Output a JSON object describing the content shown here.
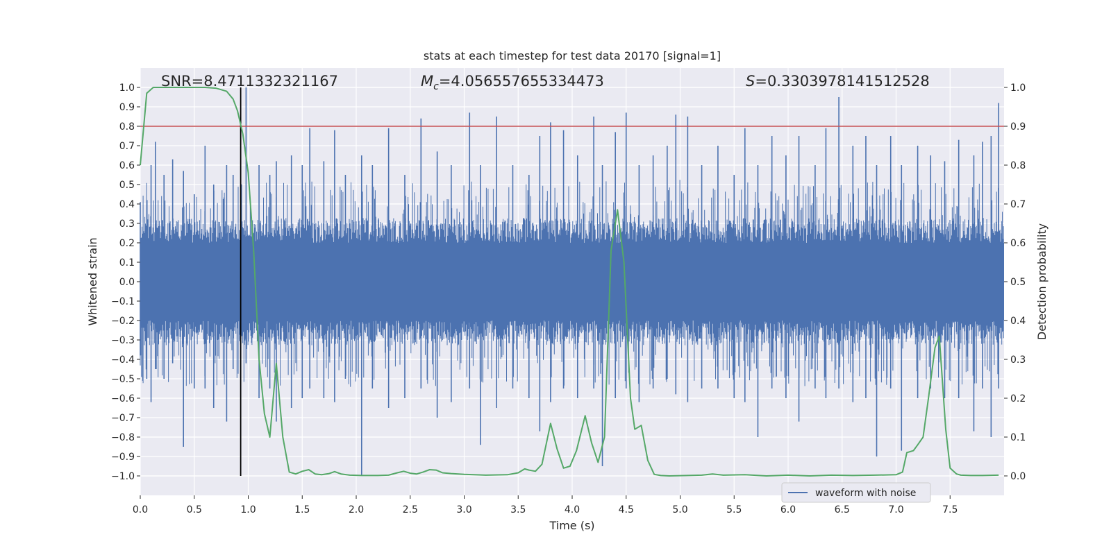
{
  "chart_data": {
    "type": "line",
    "title": "stats at each timestep for test data 20170 [signal=1]",
    "xlabel": "Time (s)",
    "ylabel": "Whitened strain",
    "y2label": "Detection probability",
    "xlim": [
      0.0,
      8.0
    ],
    "ylim": [
      -1.1,
      1.1
    ],
    "y2lim": [
      -0.05,
      1.05
    ],
    "xticks": [
      "0.0",
      "0.5",
      "1.0",
      "1.5",
      "2.0",
      "2.5",
      "3.0",
      "3.5",
      "4.0",
      "4.5",
      "5.0",
      "5.5",
      "6.0",
      "6.5",
      "7.0",
      "7.5"
    ],
    "yticks": [
      "1.0",
      "0.9",
      "0.8",
      "0.7",
      "0.6",
      "0.5",
      "0.4",
      "0.3",
      "0.2",
      "0.1",
      "0.0",
      "−0.1",
      "−0.2",
      "−0.3",
      "−0.4",
      "−0.5",
      "−0.6",
      "−0.7",
      "−0.8",
      "−0.9",
      "−1.0"
    ],
    "y2ticks": [
      "1.0",
      "0.9",
      "0.8",
      "0.7",
      "0.6",
      "0.5",
      "0.4",
      "0.3",
      "0.2",
      "0.1",
      "0.0"
    ],
    "annotations": {
      "snr": "SNR=8.4711332321167",
      "mc_symbol": "M",
      "mc_sub": "c",
      "mc_value": "=4.056557655334473",
      "s_symbol": "S",
      "s_value": "=0.3303978141512528"
    },
    "threshold": {
      "value": 0.8,
      "color": "#c44e52"
    },
    "vline": {
      "x": 0.93,
      "ymin": -1.0,
      "ymax": 1.0,
      "color": "#000000"
    },
    "legend": {
      "label": "waveform with noise",
      "position": "lower-right"
    },
    "colors": {
      "waveform": "#4c72b0",
      "probability": "#55a868",
      "background": "#eaeaf2",
      "grid": "#ffffff"
    },
    "waveform_peaks": [
      {
        "x": 0.0,
        "hi": 0.41,
        "lo": -0.38
      },
      {
        "x": 0.06,
        "hi": 0.28,
        "lo": -0.5
      },
      {
        "x": 0.1,
        "hi": 0.6,
        "lo": -0.62
      },
      {
        "x": 0.14,
        "hi": 0.72,
        "lo": -0.45
      },
      {
        "x": 0.22,
        "hi": 0.55,
        "lo": -0.5
      },
      {
        "x": 0.3,
        "hi": 0.63,
        "lo": -0.42
      },
      {
        "x": 0.4,
        "hi": 0.57,
        "lo": -0.85
      },
      {
        "x": 0.5,
        "hi": 0.45,
        "lo": -0.55
      },
      {
        "x": 0.6,
        "hi": 0.7,
        "lo": -0.55
      },
      {
        "x": 0.68,
        "hi": 0.5,
        "lo": -0.65
      },
      {
        "x": 0.8,
        "hi": 0.6,
        "lo": -0.72
      },
      {
        "x": 0.86,
        "hi": 0.55,
        "lo": -0.45
      },
      {
        "x": 0.98,
        "hi": 1.0,
        "lo": -0.42
      },
      {
        "x": 1.1,
        "hi": 0.6,
        "lo": -0.6
      },
      {
        "x": 1.2,
        "hi": 0.55,
        "lo": -0.55
      },
      {
        "x": 1.26,
        "hi": 0.62,
        "lo": -0.72
      },
      {
        "x": 1.4,
        "hi": 0.65,
        "lo": -0.65
      },
      {
        "x": 1.5,
        "hi": 0.6,
        "lo": -0.6
      },
      {
        "x": 1.57,
        "hi": 0.79,
        "lo": -0.55
      },
      {
        "x": 1.7,
        "hi": 0.62,
        "lo": -0.6
      },
      {
        "x": 1.8,
        "hi": 0.78,
        "lo": -0.62
      },
      {
        "x": 1.9,
        "hi": 0.55,
        "lo": -0.5
      },
      {
        "x": 2.05,
        "hi": 0.65,
        "lo": -1.0
      },
      {
        "x": 2.15,
        "hi": 0.6,
        "lo": -0.55
      },
      {
        "x": 2.3,
        "hi": 0.79,
        "lo": -0.65
      },
      {
        "x": 2.45,
        "hi": 0.55,
        "lo": -0.6
      },
      {
        "x": 2.6,
        "hi": 0.84,
        "lo": -0.55
      },
      {
        "x": 2.75,
        "hi": 0.67,
        "lo": -0.7
      },
      {
        "x": 2.88,
        "hi": 0.6,
        "lo": -0.62
      },
      {
        "x": 3.05,
        "hi": 0.87,
        "lo": -0.55
      },
      {
        "x": 3.15,
        "hi": 0.6,
        "lo": -0.84
      },
      {
        "x": 3.3,
        "hi": 0.85,
        "lo": -0.65
      },
      {
        "x": 3.45,
        "hi": 0.6,
        "lo": -0.55
      },
      {
        "x": 3.6,
        "hi": 0.55,
        "lo": -0.6
      },
      {
        "x": 3.7,
        "hi": 0.75,
        "lo": -0.77
      },
      {
        "x": 3.8,
        "hi": 0.82,
        "lo": -0.62
      },
      {
        "x": 3.92,
        "hi": 0.78,
        "lo": -0.55
      },
      {
        "x": 4.05,
        "hi": 0.65,
        "lo": -0.6
      },
      {
        "x": 4.2,
        "hi": 0.85,
        "lo": -0.55
      },
      {
        "x": 4.28,
        "hi": 0.6,
        "lo": -0.95
      },
      {
        "x": 4.4,
        "hi": 0.77,
        "lo": -0.6
      },
      {
        "x": 4.5,
        "hi": 0.87,
        "lo": -0.55
      },
      {
        "x": 4.62,
        "hi": 0.6,
        "lo": -0.62
      },
      {
        "x": 4.75,
        "hi": 0.65,
        "lo": -0.55
      },
      {
        "x": 4.88,
        "hi": 0.7,
        "lo": -0.5
      },
      {
        "x": 4.96,
        "hi": 0.86,
        "lo": -0.58
      },
      {
        "x": 5.07,
        "hi": 0.85,
        "lo": -0.62
      },
      {
        "x": 5.2,
        "hi": 0.6,
        "lo": -0.55
      },
      {
        "x": 5.35,
        "hi": 0.7,
        "lo": -0.55
      },
      {
        "x": 5.5,
        "hi": 0.55,
        "lo": -0.6
      },
      {
        "x": 5.6,
        "hi": 0.79,
        "lo": -0.62
      },
      {
        "x": 5.72,
        "hi": 0.6,
        "lo": -0.8
      },
      {
        "x": 5.85,
        "hi": 0.75,
        "lo": -0.55
      },
      {
        "x": 5.98,
        "hi": 0.65,
        "lo": -0.6
      },
      {
        "x": 6.1,
        "hi": 0.75,
        "lo": -0.72
      },
      {
        "x": 6.25,
        "hi": 0.6,
        "lo": -0.55
      },
      {
        "x": 6.35,
        "hi": 0.79,
        "lo": -0.6
      },
      {
        "x": 6.47,
        "hi": 0.95,
        "lo": -0.55
      },
      {
        "x": 6.6,
        "hi": 0.7,
        "lo": -0.62
      },
      {
        "x": 6.72,
        "hi": 0.75,
        "lo": -0.6
      },
      {
        "x": 6.82,
        "hi": 0.6,
        "lo": -0.9
      },
      {
        "x": 6.95,
        "hi": 0.75,
        "lo": -0.55
      },
      {
        "x": 7.05,
        "hi": 0.6,
        "lo": -0.87
      },
      {
        "x": 7.2,
        "hi": 0.7,
        "lo": -0.6
      },
      {
        "x": 7.32,
        "hi": 0.65,
        "lo": -0.55
      },
      {
        "x": 7.45,
        "hi": 0.62,
        "lo": -0.6
      },
      {
        "x": 7.58,
        "hi": 0.73,
        "lo": -0.6
      },
      {
        "x": 7.72,
        "hi": 0.65,
        "lo": -0.77
      },
      {
        "x": 7.8,
        "hi": 0.72,
        "lo": -0.55
      },
      {
        "x": 7.88,
        "hi": 0.75,
        "lo": -0.8
      },
      {
        "x": 7.95,
        "hi": 0.92,
        "lo": -0.55
      }
    ],
    "probability": {
      "x": [
        0.0,
        0.06,
        0.12,
        0.2,
        0.3,
        0.4,
        0.5,
        0.6,
        0.7,
        0.8,
        0.86,
        0.9,
        0.95,
        1.0,
        1.05,
        1.1,
        1.15,
        1.2,
        1.26,
        1.32,
        1.38,
        1.44,
        1.5,
        1.56,
        1.62,
        1.68,
        1.75,
        1.8,
        1.86,
        1.94,
        2.05,
        2.2,
        2.3,
        2.38,
        2.44,
        2.5,
        2.56,
        2.62,
        2.68,
        2.74,
        2.8,
        2.88,
        3.0,
        3.2,
        3.4,
        3.5,
        3.56,
        3.6,
        3.66,
        3.72,
        3.8,
        3.86,
        3.92,
        3.98,
        4.04,
        4.12,
        4.18,
        4.24,
        4.3,
        4.36,
        4.42,
        4.48,
        4.54,
        4.58,
        4.64,
        4.7,
        4.76,
        4.82,
        4.9,
        5.2,
        5.3,
        5.4,
        5.6,
        5.8,
        6.0,
        6.2,
        6.4,
        6.6,
        6.8,
        7.0,
        7.06,
        7.1,
        7.16,
        7.2,
        7.25,
        7.3,
        7.36,
        7.4,
        7.46,
        7.5,
        7.56,
        7.6,
        7.7,
        7.8,
        7.95
      ],
      "y": [
        0.8,
        0.985,
        1.0,
        1.0,
        1.0,
        1.0,
        1.0,
        1.0,
        0.998,
        0.99,
        0.97,
        0.94,
        0.88,
        0.78,
        0.58,
        0.3,
        0.16,
        0.1,
        0.29,
        0.1,
        0.01,
        0.005,
        0.012,
        0.016,
        0.005,
        0.003,
        0.006,
        0.011,
        0.005,
        0.002,
        0.001,
        0.001,
        0.002,
        0.008,
        0.012,
        0.007,
        0.005,
        0.01,
        0.016,
        0.015,
        0.008,
        0.006,
        0.004,
        0.002,
        0.003,
        0.008,
        0.018,
        0.015,
        0.012,
        0.03,
        0.135,
        0.07,
        0.02,
        0.025,
        0.065,
        0.155,
        0.085,
        0.035,
        0.1,
        0.58,
        0.685,
        0.55,
        0.2,
        0.12,
        0.13,
        0.04,
        0.004,
        0.001,
        0.0,
        0.002,
        0.005,
        0.002,
        0.003,
        0.0,
        0.002,
        0.0,
        0.002,
        0.001,
        0.002,
        0.003,
        0.01,
        0.06,
        0.065,
        0.08,
        0.1,
        0.2,
        0.33,
        0.36,
        0.12,
        0.02,
        0.005,
        0.002,
        0.001,
        0.001,
        0.002
      ]
    }
  }
}
